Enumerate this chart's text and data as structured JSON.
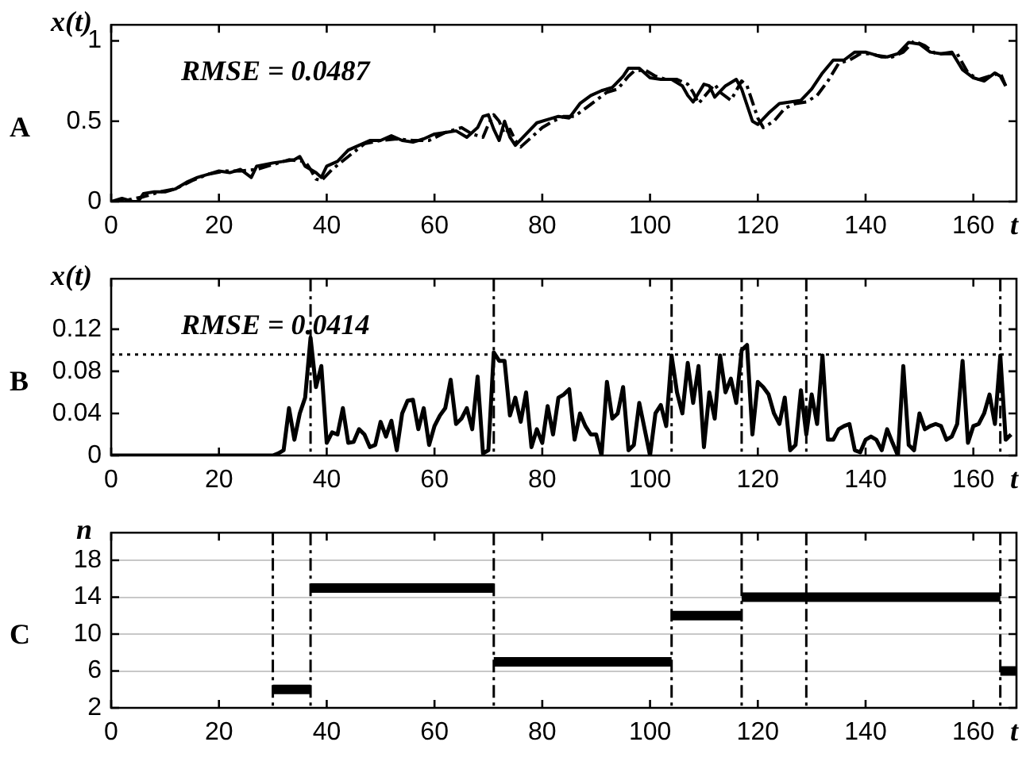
{
  "chart_data": [
    {
      "type": "line",
      "title": "A",
      "ylabel": "x(t)",
      "xlabel": "t",
      "annotations": [
        "RMSE = 0.0487"
      ],
      "xlim": [
        0,
        168
      ],
      "xticks": [
        0,
        20,
        40,
        60,
        80,
        100,
        120,
        140,
        160
      ],
      "ylim": [
        0,
        1.1
      ],
      "yticks": [
        0,
        0.5,
        1
      ],
      "grid": false,
      "series": [
        {
          "color": "#000000",
          "line_style": "solid",
          "x": [
            0,
            2,
            4,
            5,
            6,
            8,
            10,
            12,
            14,
            16,
            18,
            20,
            22,
            24,
            26,
            27,
            30,
            32,
            34,
            35,
            36,
            38,
            39,
            40,
            42,
            44,
            46,
            48,
            50,
            52,
            54,
            56,
            58,
            60,
            62,
            64,
            66,
            68,
            69,
            70,
            71,
            72,
            73,
            74,
            75,
            77,
            79,
            81,
            83,
            85,
            87,
            89,
            91,
            93,
            95,
            96,
            98,
            100,
            102,
            104,
            106,
            107,
            108,
            110,
            111,
            112,
            114,
            116,
            117,
            118,
            119,
            120,
            122,
            124,
            126,
            128,
            130,
            132,
            134,
            136,
            138,
            140,
            142,
            144,
            146,
            148,
            150,
            152,
            154,
            156,
            158,
            160,
            162,
            164,
            165,
            166
          ],
          "values": [
            0.0,
            0.02,
            0.0,
            0.0,
            0.05,
            0.06,
            0.06,
            0.08,
            0.12,
            0.15,
            0.17,
            0.19,
            0.18,
            0.2,
            0.15,
            0.22,
            0.24,
            0.25,
            0.26,
            0.28,
            0.22,
            0.18,
            0.15,
            0.22,
            0.25,
            0.32,
            0.35,
            0.38,
            0.38,
            0.41,
            0.38,
            0.37,
            0.39,
            0.42,
            0.43,
            0.44,
            0.4,
            0.46,
            0.53,
            0.54,
            0.45,
            0.38,
            0.5,
            0.4,
            0.35,
            0.42,
            0.49,
            0.51,
            0.53,
            0.52,
            0.61,
            0.66,
            0.69,
            0.71,
            0.78,
            0.83,
            0.83,
            0.77,
            0.76,
            0.76,
            0.72,
            0.66,
            0.62,
            0.73,
            0.72,
            0.65,
            0.72,
            0.76,
            0.7,
            0.6,
            0.5,
            0.48,
            0.55,
            0.61,
            0.62,
            0.63,
            0.7,
            0.8,
            0.88,
            0.88,
            0.93,
            0.93,
            0.91,
            0.9,
            0.92,
            0.99,
            0.98,
            0.93,
            0.92,
            0.93,
            0.82,
            0.77,
            0.75,
            0.8,
            0.78,
            0.72
          ]
        },
        {
          "color": "#000000",
          "line_style": "dashed",
          "x": [
            0,
            3,
            6,
            9,
            12,
            15,
            18,
            21,
            24,
            27,
            30,
            33,
            36,
            37,
            38,
            39,
            41,
            44,
            47,
            50,
            53,
            56,
            59,
            62,
            65,
            67,
            69,
            70,
            71,
            72,
            73,
            74,
            75,
            76,
            78,
            80,
            82,
            84,
            86,
            88,
            90,
            92,
            94,
            96,
            97,
            99,
            101,
            103,
            105,
            107,
            108,
            109,
            111,
            112,
            113,
            115,
            117,
            118,
            119,
            120,
            121,
            123,
            125,
            127,
            129,
            131,
            133,
            135,
            137,
            139,
            141,
            143,
            145,
            147,
            149,
            151,
            153,
            155,
            157,
            159,
            161,
            163,
            165,
            166
          ],
          "values": [
            0.0,
            0.01,
            0.03,
            0.06,
            0.08,
            0.13,
            0.17,
            0.19,
            0.19,
            0.2,
            0.23,
            0.26,
            0.25,
            0.2,
            0.14,
            0.13,
            0.2,
            0.28,
            0.36,
            0.38,
            0.39,
            0.38,
            0.38,
            0.43,
            0.46,
            0.42,
            0.4,
            0.48,
            0.54,
            0.5,
            0.42,
            0.45,
            0.38,
            0.34,
            0.4,
            0.46,
            0.5,
            0.53,
            0.53,
            0.58,
            0.63,
            0.68,
            0.7,
            0.78,
            0.81,
            0.82,
            0.78,
            0.76,
            0.76,
            0.73,
            0.68,
            0.61,
            0.69,
            0.73,
            0.68,
            0.63,
            0.75,
            0.72,
            0.62,
            0.52,
            0.46,
            0.5,
            0.58,
            0.61,
            0.62,
            0.66,
            0.75,
            0.86,
            0.88,
            0.92,
            0.92,
            0.9,
            0.9,
            0.93,
            1.0,
            0.97,
            0.92,
            0.92,
            0.92,
            0.8,
            0.76,
            0.78,
            0.8,
            0.72
          ]
        }
      ]
    },
    {
      "type": "line",
      "title": "B",
      "ylabel": "x(t)",
      "xlabel": "t",
      "annotations": [
        "RMSE = 0.0414"
      ],
      "xlim": [
        0,
        168
      ],
      "xticks": [
        0,
        20,
        40,
        60,
        80,
        100,
        120,
        140,
        160
      ],
      "ylim": [
        0,
        0.168
      ],
      "yticks": [
        0,
        0.04,
        0.08,
        0.12
      ],
      "grid": false,
      "ref_lines": [
        {
          "axis": "y",
          "value": 0.096,
          "line_style": "dotted",
          "color": "#000000"
        },
        {
          "axis": "x",
          "value": 37,
          "line_style": "dashed",
          "color": "#000000"
        },
        {
          "axis": "x",
          "value": 71,
          "line_style": "dashed",
          "color": "#000000"
        },
        {
          "axis": "x",
          "value": 104,
          "line_style": "dashed",
          "color": "#000000"
        },
        {
          "axis": "x",
          "value": 117,
          "line_style": "dashed",
          "color": "#000000"
        },
        {
          "axis": "x",
          "value": 129,
          "line_style": "dashed",
          "color": "#000000"
        },
        {
          "axis": "x",
          "value": 165,
          "line_style": "dashed",
          "color": "#000000"
        }
      ],
      "series": [
        {
          "color": "#000000",
          "line_style": "solid",
          "x": [
            0,
            30,
            31,
            32,
            33,
            34,
            35,
            36,
            37,
            38,
            39,
            40,
            41,
            42,
            43,
            44,
            45,
            46,
            47,
            48,
            49,
            50,
            51,
            52,
            53,
            54,
            55,
            56,
            57,
            58,
            59,
            60,
            61,
            62,
            63,
            64,
            65,
            66,
            67,
            68,
            69,
            70,
            71,
            72,
            73,
            74,
            75,
            76,
            77,
            78,
            79,
            80,
            81,
            82,
            83,
            84,
            85,
            86,
            87,
            88,
            89,
            90,
            91,
            92,
            93,
            94,
            95,
            96,
            97,
            98,
            99,
            100,
            101,
            102,
            103,
            104,
            105,
            106,
            107,
            108,
            109,
            110,
            111,
            112,
            113,
            114,
            115,
            116,
            117,
            118,
            119,
            120,
            121,
            122,
            123,
            124,
            125,
            126,
            127,
            128,
            129,
            130,
            131,
            132,
            133,
            134,
            135,
            136,
            137,
            138,
            139,
            140,
            141,
            142,
            143,
            144,
            145,
            146,
            147,
            148,
            149,
            150,
            151,
            152,
            153,
            154,
            155,
            156,
            157,
            158,
            159,
            160,
            161,
            162,
            163,
            164,
            165,
            166,
            167
          ],
          "values": [
            0,
            0,
            0.002,
            0.005,
            0.045,
            0.015,
            0.04,
            0.055,
            0.112,
            0.065,
            0.085,
            0.012,
            0.022,
            0.02,
            0.045,
            0.012,
            0.013,
            0.025,
            0.02,
            0.008,
            0.01,
            0.032,
            0.018,
            0.033,
            0.005,
            0.04,
            0.052,
            0.053,
            0.025,
            0.045,
            0.01,
            0.028,
            0.038,
            0.045,
            0.072,
            0.03,
            0.035,
            0.045,
            0.025,
            0.075,
            0.002,
            0.005,
            0.098,
            0.09,
            0.09,
            0.038,
            0.055,
            0.032,
            0.06,
            0.008,
            0.025,
            0.012,
            0.047,
            0.02,
            0.055,
            0.058,
            0.063,
            0.015,
            0.04,
            0.028,
            0.02,
            0.02,
            0,
            0.07,
            0.035,
            0.04,
            0.065,
            0.005,
            0.01,
            0.05,
            0.025,
            0,
            0.04,
            0.048,
            0.028,
            0.095,
            0.06,
            0.04,
            0.088,
            0.05,
            0.085,
            0.008,
            0.06,
            0.035,
            0.095,
            0.06,
            0.073,
            0.05,
            0.1,
            0.105,
            0.02,
            0.07,
            0.065,
            0.058,
            0.04,
            0.03,
            0.055,
            0.005,
            0.01,
            0.062,
            0.02,
            0.058,
            0.03,
            0.095,
            0.015,
            0.015,
            0.025,
            0.028,
            0.03,
            0.005,
            0.003,
            0.015,
            0.018,
            0.015,
            0.005,
            0.025,
            0.012,
            0,
            0.085,
            0.01,
            0.005,
            0.04,
            0.025,
            0.028,
            0.03,
            0.028,
            0.015,
            0.018,
            0.03,
            0.09,
            0.012,
            0.028,
            0.03,
            0.04,
            0.058,
            0.03,
            0.095,
            0.015,
            0.02
          ]
        }
      ]
    },
    {
      "type": "line",
      "title": "C",
      "ylabel": "n",
      "xlabel": "t",
      "xlim": [
        0,
        168
      ],
      "xticks": [
        0,
        20,
        40,
        60,
        80,
        100,
        120,
        140,
        160
      ],
      "ylim": [
        2,
        21
      ],
      "yticks": [
        2,
        6,
        10,
        14,
        18
      ],
      "grid": "y",
      "ref_lines": [
        {
          "axis": "x",
          "value": 30,
          "line_style": "dashed",
          "color": "#000000"
        },
        {
          "axis": "x",
          "value": 37,
          "line_style": "dashed",
          "color": "#000000"
        },
        {
          "axis": "x",
          "value": 71,
          "line_style": "dashed",
          "color": "#000000"
        },
        {
          "axis": "x",
          "value": 104,
          "line_style": "dashed",
          "color": "#000000"
        },
        {
          "axis": "x",
          "value": 117,
          "line_style": "dashed",
          "color": "#000000"
        },
        {
          "axis": "x",
          "value": 129,
          "line_style": "dashed",
          "color": "#000000"
        },
        {
          "axis": "x",
          "value": 165,
          "line_style": "dashed",
          "color": "#000000"
        }
      ],
      "series": [
        {
          "color": "#000000",
          "line_style": "solid",
          "x": [
            30,
            37
          ],
          "values": [
            4,
            4
          ]
        },
        {
          "color": "#000000",
          "line_style": "solid",
          "x": [
            37,
            71
          ],
          "values": [
            15,
            15
          ]
        },
        {
          "color": "#000000",
          "line_style": "solid",
          "x": [
            71,
            104
          ],
          "values": [
            7,
            7
          ]
        },
        {
          "color": "#000000",
          "line_style": "solid",
          "x": [
            104,
            117
          ],
          "values": [
            12,
            12
          ]
        },
        {
          "color": "#000000",
          "line_style": "solid",
          "x": [
            117,
            165
          ],
          "values": [
            14,
            14
          ]
        },
        {
          "color": "#000000",
          "line_style": "solid",
          "x": [
            165,
            168
          ],
          "values": [
            6,
            6
          ]
        }
      ]
    }
  ]
}
